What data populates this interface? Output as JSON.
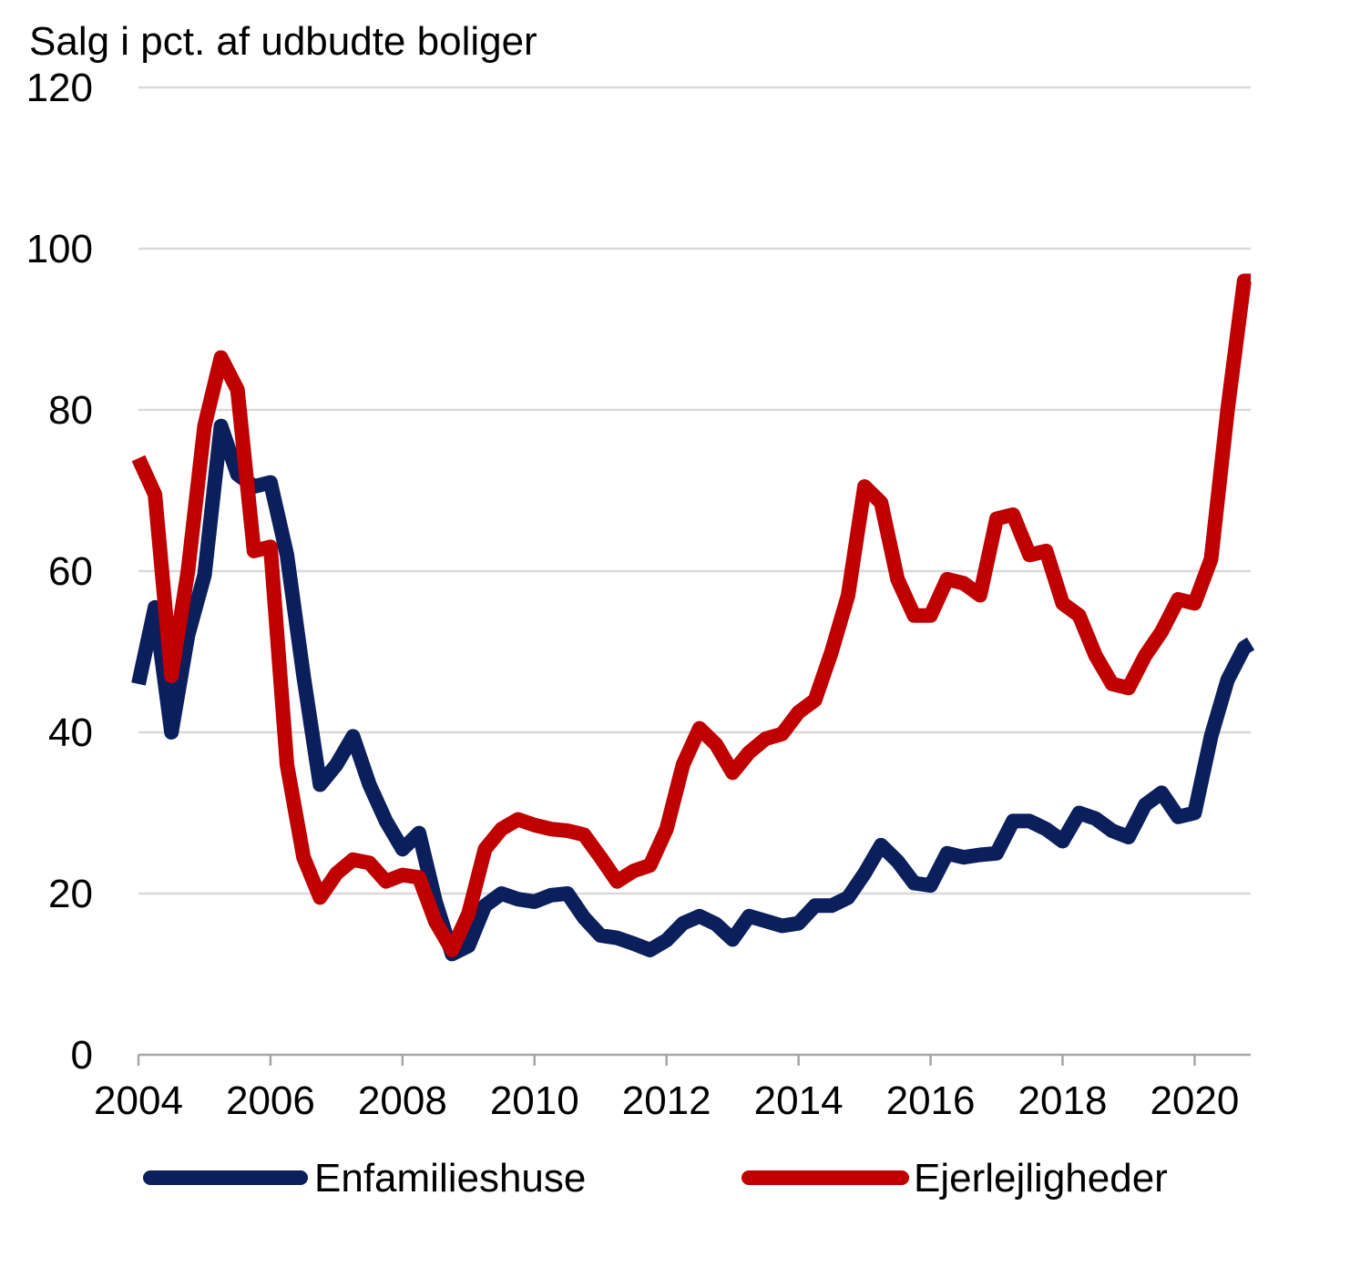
{
  "chart_data": {
    "type": "line",
    "title": "",
    "ylabel": "Salg i pct. af udbudte boliger",
    "xlabel": "",
    "ylim": [
      0,
      120
    ],
    "xlim": [
      2004.0,
      2020.85
    ],
    "yticks": [
      0,
      20,
      40,
      60,
      80,
      100,
      120
    ],
    "xticks": [
      2004,
      2006,
      2008,
      2010,
      2012,
      2014,
      2016,
      2018,
      2020
    ],
    "grid": "horizontal",
    "legend_position": "bottom",
    "colors": {
      "series0": "#0b1f5c",
      "series1": "#c00000",
      "grid": "#d9d9d9"
    },
    "x": [
      2004.0,
      2004.25,
      2004.5,
      2004.75,
      2005.0,
      2005.25,
      2005.5,
      2005.75,
      2006.0,
      2006.25,
      2006.5,
      2006.75,
      2007.0,
      2007.25,
      2007.5,
      2007.75,
      2008.0,
      2008.25,
      2008.5,
      2008.75,
      2009.0,
      2009.25,
      2009.5,
      2009.75,
      2010.0,
      2010.25,
      2010.5,
      2010.75,
      2011.0,
      2011.25,
      2011.5,
      2011.75,
      2012.0,
      2012.25,
      2012.5,
      2012.75,
      2013.0,
      2013.25,
      2013.5,
      2013.75,
      2014.0,
      2014.25,
      2014.5,
      2014.75,
      2015.0,
      2015.25,
      2015.5,
      2015.75,
      2016.0,
      2016.25,
      2016.5,
      2016.75,
      2017.0,
      2017.25,
      2017.5,
      2017.75,
      2018.0,
      2018.25,
      2018.5,
      2018.75,
      2019.0,
      2019.25,
      2019.5,
      2019.75,
      2020.0,
      2020.25,
      2020.5,
      2020.75,
      2020.85
    ],
    "series": [
      {
        "name": "Enfamilieshuse",
        "values": [
          46,
          55.5,
          40,
          52,
          59.5,
          78,
          72,
          70.5,
          71,
          62,
          47,
          33.5,
          36,
          39.5,
          33.5,
          29,
          25.5,
          27.5,
          19,
          12.5,
          13.5,
          18.5,
          20,
          19.3,
          19,
          19.8,
          20,
          17,
          14.8,
          14.5,
          13.8,
          13,
          14.2,
          16.3,
          17.2,
          16.2,
          14.3,
          17.2,
          16.6,
          16,
          16.3,
          18.5,
          18.5,
          19.5,
          22.5,
          26,
          24,
          21.3,
          21,
          25,
          24.5,
          24.8,
          25,
          29,
          29,
          28,
          26.5,
          30,
          29.3,
          27.8,
          27,
          31,
          32.5,
          29.5,
          30,
          39.5,
          46.5,
          50.5,
          51
        ]
      },
      {
        "name": "Ejerlejligheder",
        "values": [
          74,
          69.5,
          47,
          60,
          78,
          86.5,
          82.5,
          62.5,
          63,
          36,
          24.5,
          19.5,
          22.5,
          24.2,
          23.8,
          21.5,
          22.3,
          22,
          16.5,
          13,
          17.5,
          25.5,
          28,
          29.2,
          28.5,
          28,
          27.8,
          27.3,
          24.5,
          21.5,
          22.8,
          23.5,
          28,
          36,
          40.5,
          38.5,
          35,
          37.5,
          39.2,
          39.8,
          42.5,
          44,
          50,
          57,
          70.5,
          68.5,
          59,
          54.5,
          54.5,
          59,
          58.5,
          57,
          66.5,
          67,
          62,
          62.5,
          56,
          54.5,
          49.5,
          46,
          45.5,
          49.5,
          52.5,
          56.5,
          56,
          61.5,
          80,
          96,
          96
        ]
      }
    ]
  }
}
